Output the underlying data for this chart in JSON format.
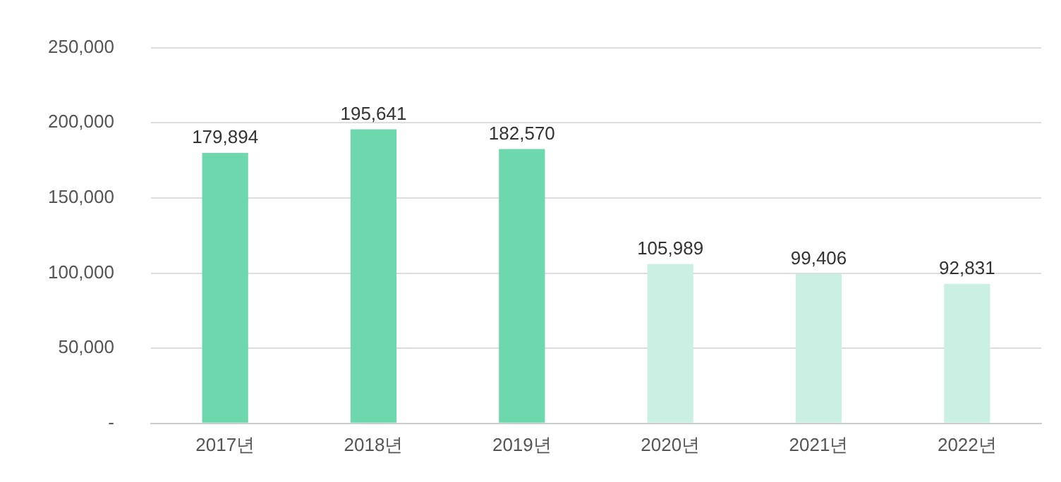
{
  "chart_data": {
    "type": "bar",
    "categories": [
      "2017년",
      "2018년",
      "2019년",
      "2020년",
      "2021년",
      "2022년"
    ],
    "values": [
      179894,
      195641,
      182570,
      105989,
      99406,
      92831
    ],
    "colors": [
      "#6dd8ae",
      "#6dd8ae",
      "#6dd8ae",
      "#c9f0e2",
      "#c9f0e2",
      "#c9f0e2"
    ],
    "value_labels": [
      "179,894",
      "195,641",
      "182,570",
      "105,989",
      "99,406",
      "92,831"
    ],
    "ylim": [
      0,
      250000
    ],
    "yticks": [
      {
        "value": 0,
        "label": "-"
      },
      {
        "value": 50000,
        "label": "50,000"
      },
      {
        "value": 100000,
        "label": "100,000"
      },
      {
        "value": 150000,
        "label": "150,000"
      },
      {
        "value": 200000,
        "label": "200,000"
      },
      {
        "value": 250000,
        "label": "250,000"
      }
    ],
    "grid": "y",
    "legend": false
  }
}
